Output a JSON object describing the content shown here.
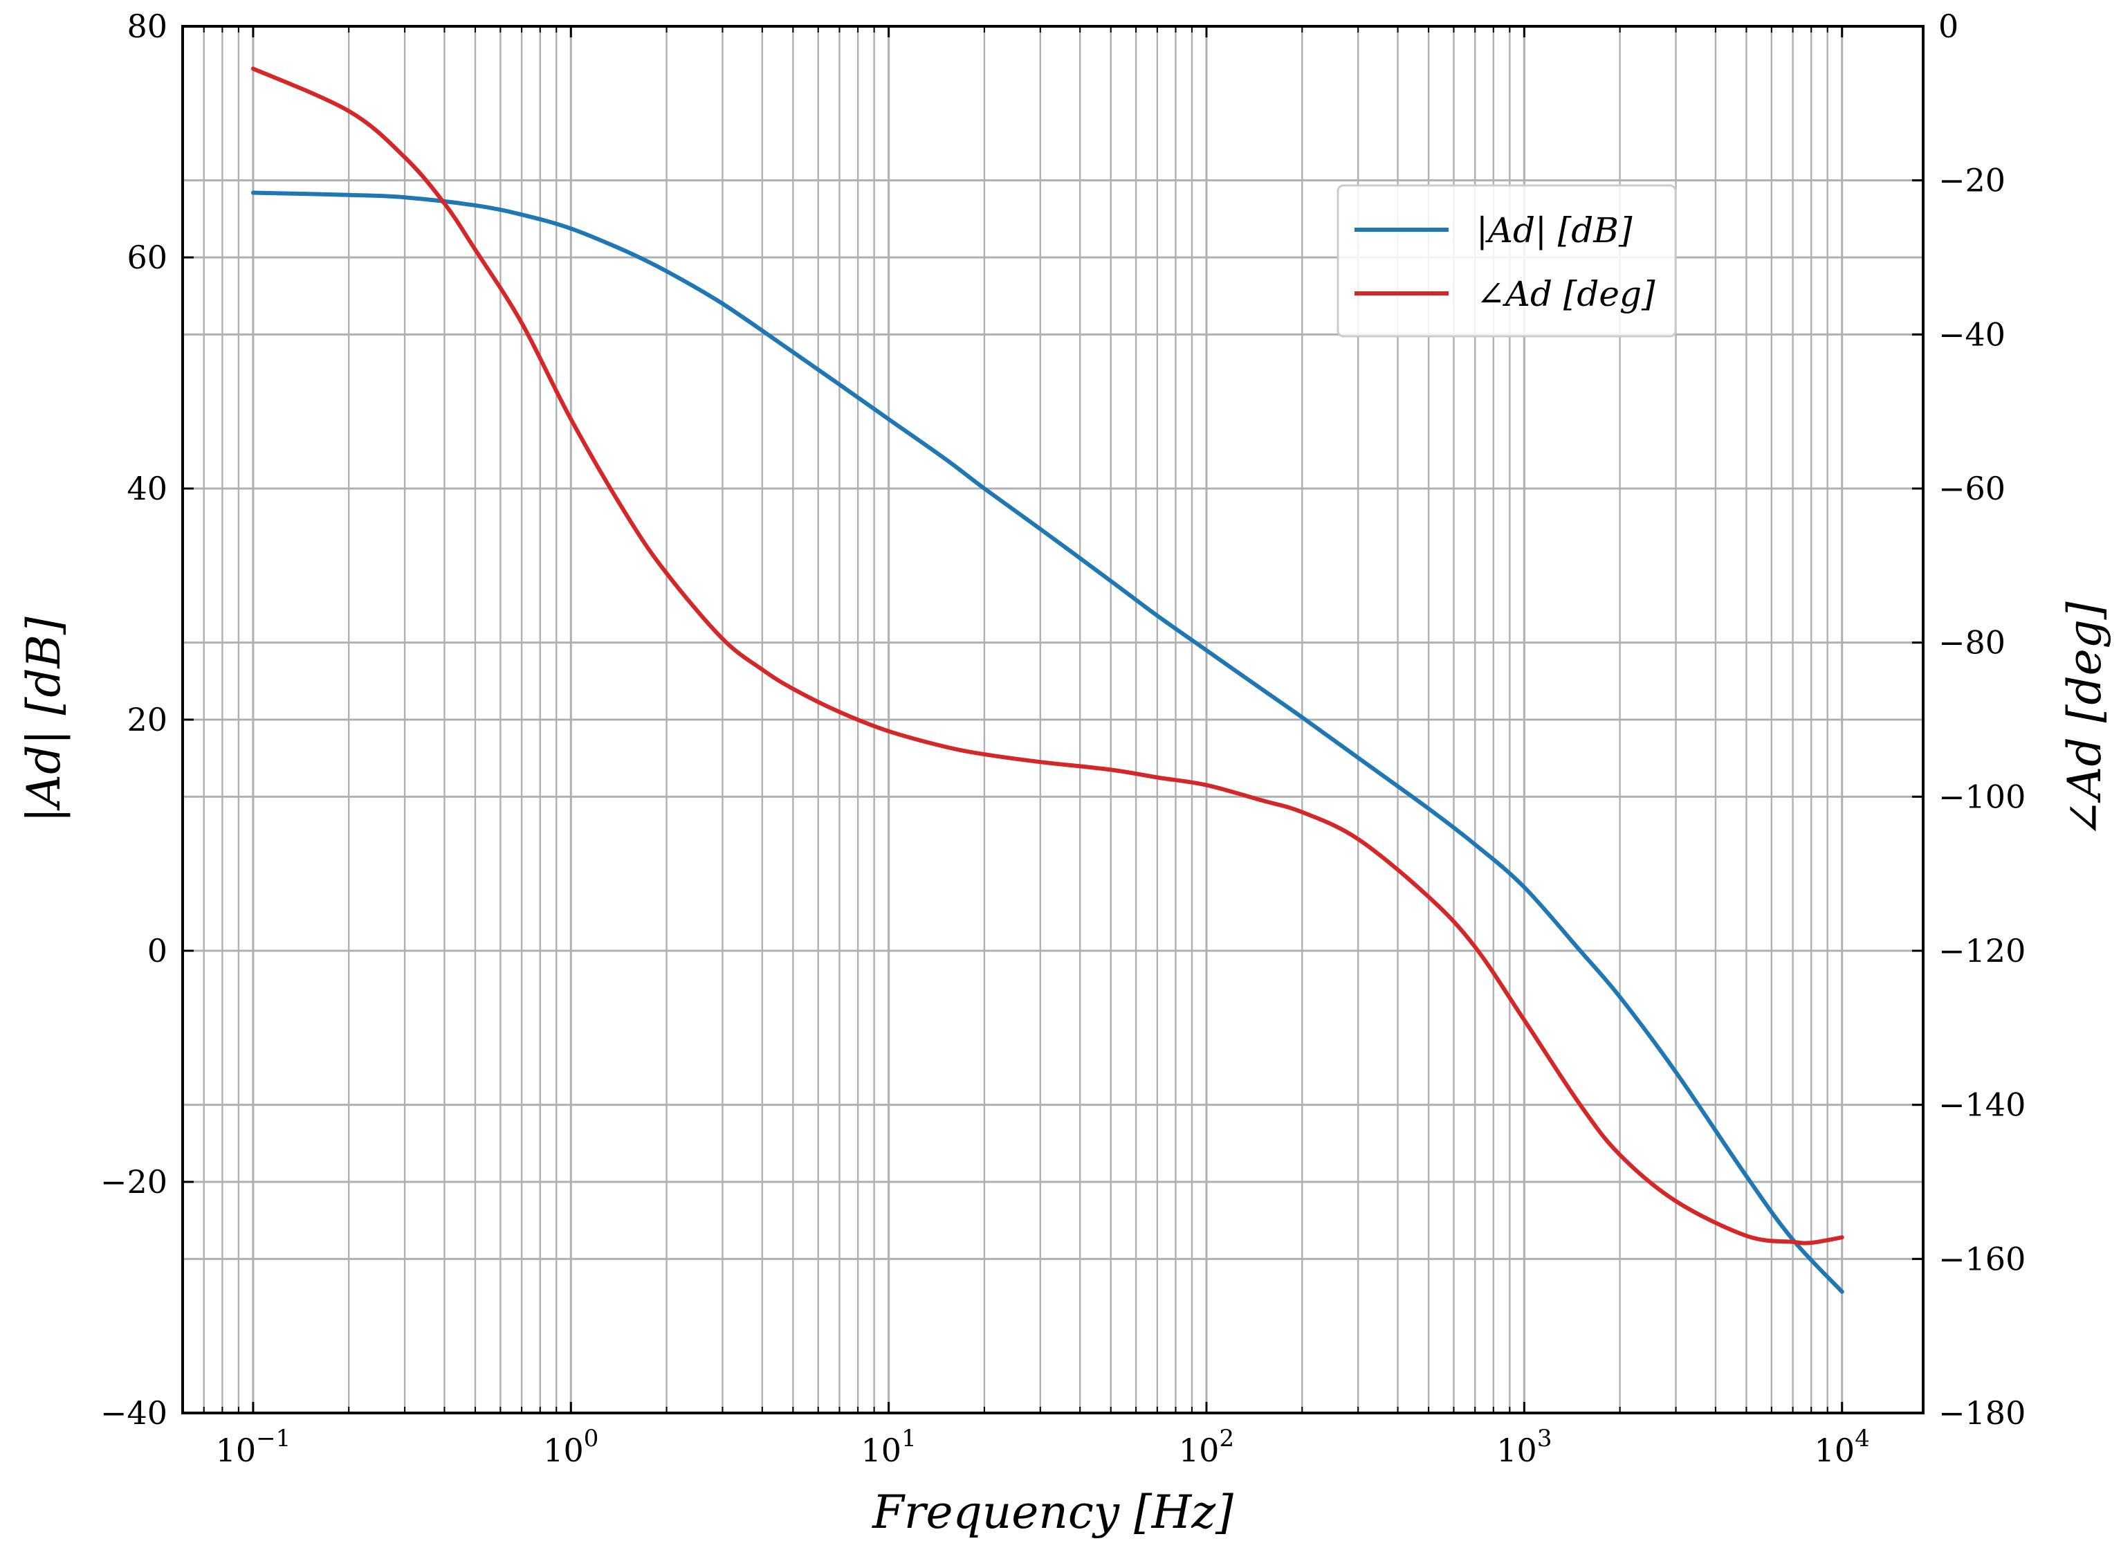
{
  "chart_data": {
    "type": "line",
    "xscale": "log",
    "xlim": [
      0.06,
      18000
    ],
    "xlabel": "Frequency [Hz]",
    "ylabel": "|Ad| [dB]",
    "ylim": [
      -40,
      80
    ],
    "y2label": "∠Ad [deg]",
    "y2lim": [
      -180,
      0
    ],
    "grid": true,
    "legend_position": "upper-right",
    "x_ticks": [
      {
        "value": 0.1,
        "base": "10",
        "exp": "−1"
      },
      {
        "value": 1,
        "base": "10",
        "exp": "0"
      },
      {
        "value": 10,
        "base": "10",
        "exp": "1"
      },
      {
        "value": 100,
        "base": "10",
        "exp": "2"
      },
      {
        "value": 1000,
        "base": "10",
        "exp": "3"
      },
      {
        "value": 10000,
        "base": "10",
        "exp": "4"
      }
    ],
    "y_ticks": [
      {
        "value": 80,
        "label": "80"
      },
      {
        "value": 60,
        "label": "60"
      },
      {
        "value": 40,
        "label": "40"
      },
      {
        "value": 20,
        "label": "20"
      },
      {
        "value": 0,
        "label": "0"
      },
      {
        "value": -20,
        "label": "−20"
      },
      {
        "value": -40,
        "label": "−40"
      }
    ],
    "y2_ticks": [
      {
        "value": 0,
        "label": "0"
      },
      {
        "value": -20,
        "label": "−20"
      },
      {
        "value": -40,
        "label": "−40"
      },
      {
        "value": -60,
        "label": "−60"
      },
      {
        "value": -80,
        "label": "−80"
      },
      {
        "value": -100,
        "label": "−100"
      },
      {
        "value": -120,
        "label": "−120"
      },
      {
        "value": -140,
        "label": "−140"
      },
      {
        "value": -160,
        "label": "−160"
      },
      {
        "value": -180,
        "label": "−180"
      }
    ],
    "series": [
      {
        "name": "|Ad| [dB]",
        "axis": "left",
        "color": "#1f77b4",
        "x": [
          0.1,
          0.2,
          0.3,
          0.5,
          0.7,
          1,
          1.5,
          2,
          3,
          5,
          7,
          10,
          15,
          20,
          30,
          50,
          70,
          100,
          150,
          200,
          300,
          500,
          700,
          1000,
          1500,
          2000,
          3000,
          5000,
          7000,
          10000
        ],
        "y": [
          65.6,
          65.4,
          65.2,
          64.5,
          63.7,
          62.5,
          60.5,
          58.8,
          56.0,
          51.8,
          49.0,
          46.0,
          42.6,
          40.0,
          36.5,
          32.0,
          29.0,
          26.0,
          22.6,
          20.2,
          16.7,
          12.3,
          9.2,
          5.5,
          0.0,
          -4.0,
          -10.5,
          -19.5,
          -25.0,
          -29.5
        ]
      },
      {
        "name": "∠Ad [deg]",
        "axis": "right",
        "color": "#d62728",
        "x": [
          0.1,
          0.2,
          0.3,
          0.4,
          0.5,
          0.7,
          1,
          1.5,
          2,
          3,
          4,
          5,
          7,
          10,
          15,
          20,
          30,
          50,
          70,
          100,
          150,
          200,
          300,
          500,
          700,
          1000,
          1500,
          2000,
          3000,
          5000,
          7000,
          8000,
          10000
        ],
        "y": [
          -5.5,
          -11.0,
          -17.0,
          -23.0,
          -29.0,
          -38.5,
          -51.0,
          -63.5,
          -71.0,
          -79.5,
          -83.5,
          -86.0,
          -89.0,
          -91.5,
          -93.5,
          -94.5,
          -95.5,
          -96.5,
          -97.5,
          -98.5,
          -100.5,
          -102.0,
          -105.5,
          -113.0,
          -119.5,
          -129.0,
          -140.0,
          -146.5,
          -152.5,
          -157.0,
          -157.8,
          -157.9,
          -157.2
        ]
      }
    ],
    "legend": [
      {
        "label": "|Ad| [dB]",
        "color": "#1f77b4"
      },
      {
        "label": "∠Ad [deg]",
        "color": "#d62728"
      }
    ]
  }
}
